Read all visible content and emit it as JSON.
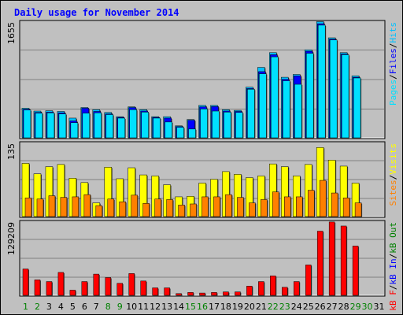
{
  "title": "Daily usage for November 2014",
  "colors": {
    "hits": "#00c0ff",
    "files": "#0000ff",
    "pages": "#00e0ff",
    "visits": "#ffff00",
    "sites": "#ff8000",
    "kbf": "#ff0000",
    "kbin": "#0000ff",
    "kbout": "#008000",
    "weekend_day": "#008000",
    "title": "#0000ff"
  },
  "chart_data": [
    {
      "type": "bar",
      "panel": "hits-files-pages",
      "categories": [
        "1",
        "2",
        "3",
        "4",
        "5",
        "6",
        "7",
        "8",
        "9",
        "10",
        "11",
        "12",
        "13",
        "14",
        "15",
        "16",
        "17",
        "18",
        "19",
        "20",
        "21",
        "22",
        "23",
        "24",
        "25",
        "26",
        "27",
        "28",
        "29",
        "30",
        "31"
      ],
      "ylim": [
        0,
        1655
      ],
      "ymax_label": "1655",
      "legend_right": [
        "Pages",
        "/",
        "Files",
        "/",
        "Hits"
      ],
      "series": [
        {
          "name": "Hits",
          "values": [
            420,
            380,
            385,
            375,
            280,
            430,
            400,
            360,
            300,
            440,
            400,
            300,
            300,
            170,
            260,
            460,
            460,
            400,
            390,
            720,
            1000,
            1210,
            860,
            900,
            1250,
            1650,
            1420,
            1210,
            880,
            0,
            0
          ]
        },
        {
          "name": "Files",
          "values": [
            405,
            360,
            365,
            355,
            240,
            420,
            375,
            340,
            290,
            430,
            380,
            290,
            280,
            160,
            250,
            440,
            445,
            380,
            375,
            700,
            940,
            1180,
            830,
            880,
            1230,
            1620,
            1400,
            1190,
            860,
            0,
            0
          ]
        },
        {
          "name": "Pages",
          "values": [
            395,
            350,
            355,
            340,
            215,
            350,
            355,
            330,
            280,
            400,
            365,
            280,
            225,
            150,
            125,
            410,
            380,
            365,
            360,
            690,
            910,
            1150,
            810,
            760,
            1200,
            1600,
            1390,
            1180,
            850,
            0,
            0
          ]
        }
      ]
    },
    {
      "type": "bar",
      "panel": "visits-sites",
      "categories": [
        "1",
        "2",
        "3",
        "4",
        "5",
        "6",
        "7",
        "8",
        "9",
        "10",
        "11",
        "12",
        "13",
        "14",
        "15",
        "16",
        "17",
        "18",
        "19",
        "20",
        "21",
        "22",
        "23",
        "24",
        "25",
        "26",
        "27",
        "28",
        "29",
        "30",
        "31"
      ],
      "ylim": [
        0,
        135
      ],
      "ymax_label": "135",
      "legend_right": [
        "Sites",
        "/",
        "Visits"
      ],
      "series": [
        {
          "name": "Visits",
          "values": [
            97,
            78,
            91,
            95,
            70,
            62,
            25,
            90,
            69,
            89,
            76,
            74,
            58,
            36,
            37,
            61,
            68,
            82,
            77,
            71,
            74,
            96,
            91,
            74,
            95,
            126,
            103,
            92,
            61,
            0,
            0
          ]
        },
        {
          "name": "Sites",
          "values": [
            34,
            32,
            38,
            35,
            36,
            40,
            20,
            32,
            27,
            39,
            24,
            32,
            31,
            21,
            23,
            36,
            36,
            40,
            35,
            25,
            31,
            45,
            36,
            36,
            48,
            66,
            43,
            34,
            25,
            0,
            0
          ]
        }
      ]
    },
    {
      "type": "bar",
      "panel": "kbytes",
      "categories": [
        "1",
        "2",
        "3",
        "4",
        "5",
        "6",
        "7",
        "8",
        "9",
        "10",
        "11",
        "12",
        "13",
        "14",
        "15",
        "16",
        "17",
        "18",
        "19",
        "20",
        "21",
        "22",
        "23",
        "24",
        "25",
        "26",
        "27",
        "28",
        "29",
        "30",
        "31"
      ],
      "ylim": [
        0,
        129209
      ],
      "ymax_label": "129209",
      "legend_right": [
        "kB F",
        "/",
        "kB In",
        "/",
        "kB Out"
      ],
      "series": [
        {
          "name": "kB F",
          "values": [
            46000,
            27000,
            24000,
            40000,
            9000,
            24000,
            37000,
            31000,
            21000,
            38000,
            25000,
            13000,
            13000,
            3000,
            5000,
            4000,
            5000,
            6000,
            6000,
            16000,
            24000,
            34000,
            14000,
            24000,
            53000,
            112000,
            128000,
            121000,
            86000,
            0,
            0
          ]
        }
      ]
    }
  ],
  "x_labels": [
    {
      "text": "1",
      "weekend": true
    },
    {
      "text": "2",
      "weekend": true
    },
    {
      "text": "3",
      "weekend": false
    },
    {
      "text": "4",
      "weekend": false
    },
    {
      "text": "5",
      "weekend": false
    },
    {
      "text": "6",
      "weekend": false
    },
    {
      "text": "7",
      "weekend": false
    },
    {
      "text": "8",
      "weekend": true
    },
    {
      "text": "9",
      "weekend": true
    },
    {
      "text": "10",
      "weekend": false
    },
    {
      "text": "11",
      "weekend": false
    },
    {
      "text": "12",
      "weekend": false
    },
    {
      "text": "13",
      "weekend": false
    },
    {
      "text": "14",
      "weekend": false
    },
    {
      "text": "15",
      "weekend": true
    },
    {
      "text": "16",
      "weekend": true
    },
    {
      "text": "17",
      "weekend": false
    },
    {
      "text": "18",
      "weekend": false
    },
    {
      "text": "19",
      "weekend": false
    },
    {
      "text": "20",
      "weekend": false
    },
    {
      "text": "21",
      "weekend": false
    },
    {
      "text": "22",
      "weekend": true
    },
    {
      "text": "23",
      "weekend": true
    },
    {
      "text": "24",
      "weekend": false
    },
    {
      "text": "25",
      "weekend": false
    },
    {
      "text": "26",
      "weekend": false
    },
    {
      "text": "27",
      "weekend": false
    },
    {
      "text": "28",
      "weekend": false
    },
    {
      "text": "29",
      "weekend": true
    },
    {
      "text": "30",
      "weekend": true
    },
    {
      "text": "31",
      "weekend": false
    }
  ]
}
